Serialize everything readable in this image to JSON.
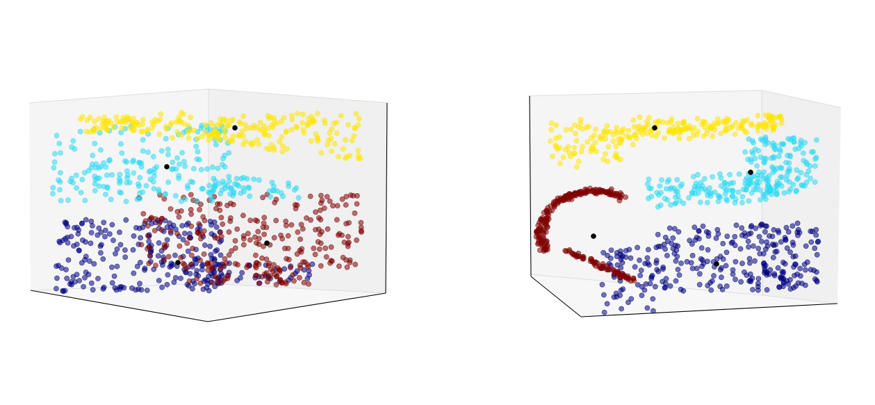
{
  "chart_data": [
    {
      "type": "scatter",
      "view": "left",
      "series": [
        {
          "color": "#ffe500",
          "band": "yellow-top-layer"
        },
        {
          "color": "#2ad8f4",
          "band": "cyan-upper-middle-layer"
        },
        {
          "color": "#800000",
          "band": "dark-red-lower-middle-layer"
        },
        {
          "color": "#000080",
          "band": "navy-bottom-layer"
        }
      ],
      "centers": [
        [
          0.45,
          0.82
        ],
        [
          0.25,
          0.58
        ],
        [
          0.62,
          0.34
        ],
        [
          0.3,
          0.2
        ]
      ],
      "axes_visible": false,
      "grid": false
    },
    {
      "type": "scatter",
      "view": "right",
      "series": [
        {
          "color": "#ffe500",
          "band": "yellow-top-layer"
        },
        {
          "color": "#2ad8f4",
          "band": "cyan-right-curve"
        },
        {
          "color": "#800000",
          "band": "dark-red-left-curve"
        },
        {
          "color": "#000080",
          "band": "navy-bottom-layer"
        }
      ],
      "centers": [
        [
          0.3,
          0.84
        ],
        [
          0.55,
          0.62
        ],
        [
          0.15,
          0.42
        ],
        [
          0.52,
          0.25
        ]
      ],
      "axes_visible": false,
      "grid": false
    }
  ]
}
